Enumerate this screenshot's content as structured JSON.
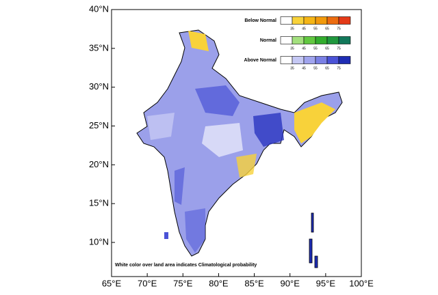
{
  "map": {
    "xlim": [
      65,
      100
    ],
    "ylim": [
      5.6,
      40
    ],
    "xticks": [
      {
        "value": 65,
        "label": "65°E"
      },
      {
        "value": 70,
        "label": "70°E"
      },
      {
        "value": 75,
        "label": "75°E"
      },
      {
        "value": 80,
        "label": "80°E"
      },
      {
        "value": 85,
        "label": "85°E"
      },
      {
        "value": 90,
        "label": "90°E"
      },
      {
        "value": 95,
        "label": "95°E"
      },
      {
        "value": 100,
        "label": "100°E"
      }
    ],
    "yticks": [
      {
        "value": 10,
        "label": "10°N"
      },
      {
        "value": 15,
        "label": "15°N"
      },
      {
        "value": 20,
        "label": "20°N"
      },
      {
        "value": 25,
        "label": "25°N"
      },
      {
        "value": 30,
        "label": "30°N"
      },
      {
        "value": 35,
        "label": "35°N"
      },
      {
        "value": 40,
        "label": "40°N"
      }
    ],
    "legend": [
      {
        "name": "Below Normal",
        "ticks": [
          35,
          45,
          55,
          65,
          75
        ],
        "colors": [
          "#ffffff",
          "#f8d23a",
          "#f5b516",
          "#f29a0c",
          "#ec6c10",
          "#e43a18"
        ]
      },
      {
        "name": "Normal",
        "ticks": [
          35,
          45,
          55,
          65,
          75
        ],
        "colors": [
          "#ffffff",
          "#a3e07e",
          "#62c840",
          "#33ad2e",
          "#20983e",
          "#12785a"
        ]
      },
      {
        "name": "Above Normal",
        "ticks": [
          35,
          45,
          55,
          65,
          75
        ],
        "colors": [
          "#ffffff",
          "#c5c8f4",
          "#a0a4ee",
          "#7a80e4",
          "#4a52d6",
          "#1e2db4"
        ]
      }
    ],
    "note": "White color over land area indicates Climatological probability"
  }
}
